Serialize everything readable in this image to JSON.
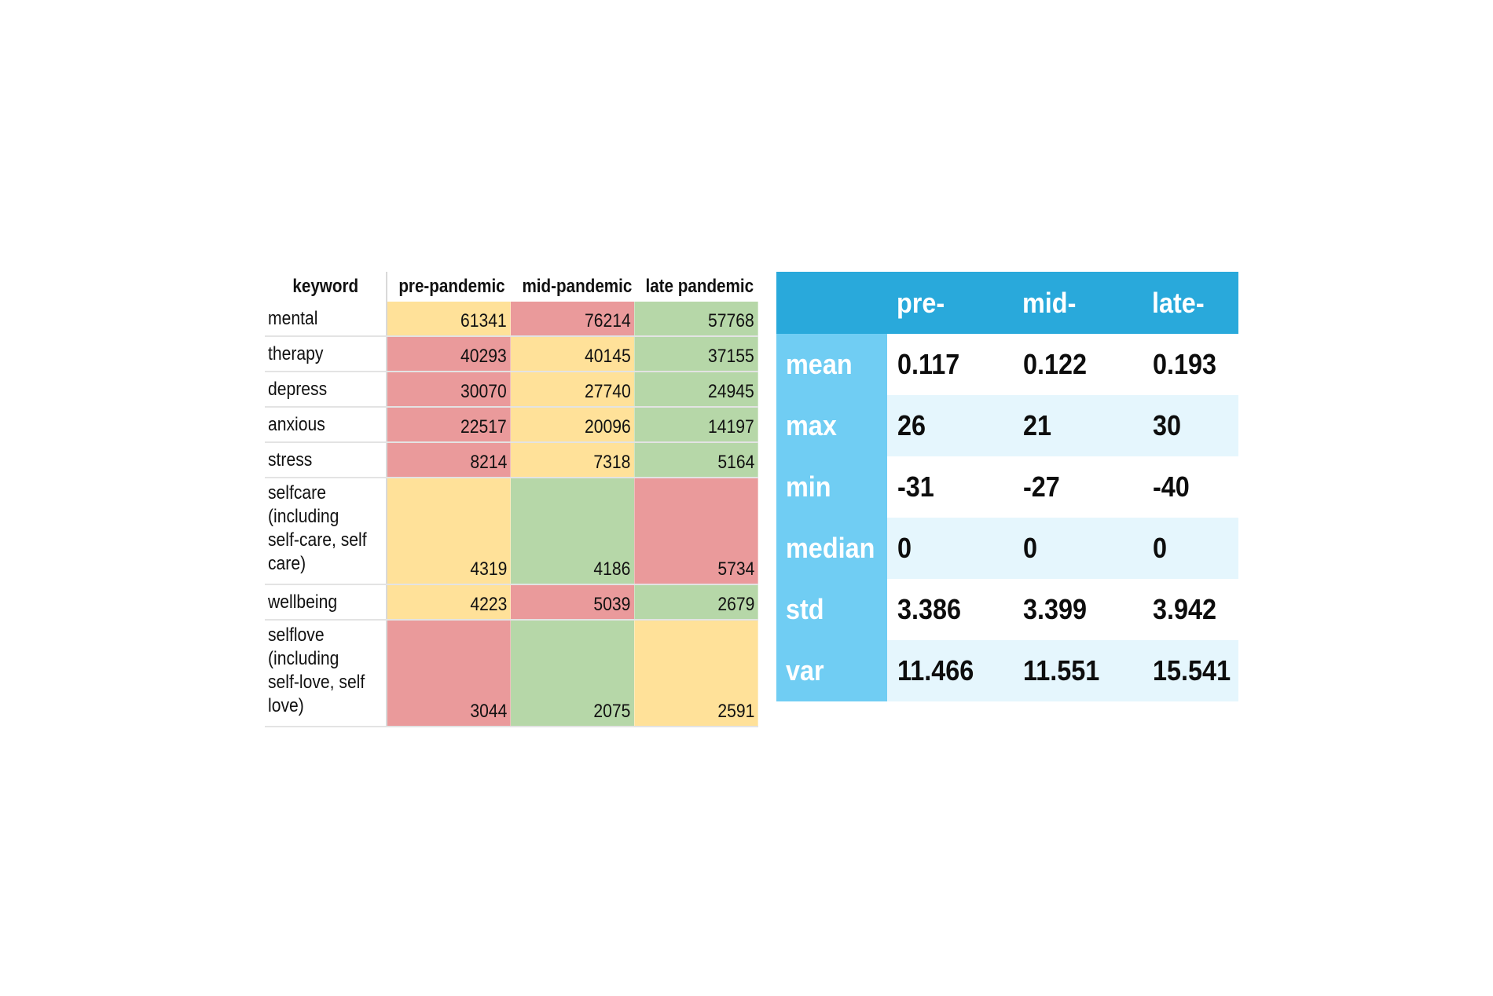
{
  "colors": {
    "cell_high": "#ea9a9b",
    "cell_mid": "#ffe199",
    "cell_low": "#b6d7a8",
    "stats_header_bg": "#29a9db",
    "stats_label_bg": "#70cdf3",
    "stats_stripe_bg": "#e5f6fd"
  },
  "chart_data": [
    {
      "type": "table",
      "columns": [
        "keyword",
        "pre-pandemic",
        "mid-pandemic",
        "late pandemic"
      ],
      "rows": [
        {
          "keyword": "mental",
          "values": [
            61341,
            76214,
            57768
          ],
          "colors": [
            "mid",
            "high",
            "low"
          ]
        },
        {
          "keyword": "therapy",
          "values": [
            40293,
            40145,
            37155
          ],
          "colors": [
            "high",
            "mid",
            "low"
          ]
        },
        {
          "keyword": "depress",
          "values": [
            30070,
            27740,
            24945
          ],
          "colors": [
            "high",
            "mid",
            "low"
          ]
        },
        {
          "keyword": "anxious",
          "values": [
            22517,
            20096,
            14197
          ],
          "colors": [
            "high",
            "mid",
            "low"
          ]
        },
        {
          "keyword": "stress",
          "values": [
            8214,
            7318,
            5164
          ],
          "colors": [
            "high",
            "mid",
            "low"
          ]
        },
        {
          "keyword": "selfcare (including self-care, self care)",
          "values": [
            4319,
            4186,
            5734
          ],
          "colors": [
            "mid",
            "low",
            "high"
          ]
        },
        {
          "keyword": "wellbeing",
          "values": [
            4223,
            5039,
            2679
          ],
          "colors": [
            "mid",
            "high",
            "low"
          ]
        },
        {
          "keyword": "selflove (including self-love, self love)",
          "values": [
            3044,
            2075,
            2591
          ],
          "colors": [
            "high",
            "low",
            "mid"
          ]
        }
      ]
    },
    {
      "type": "table",
      "columns": [
        "",
        "pre-",
        "mid-",
        "late-"
      ],
      "rows": [
        {
          "label": "mean",
          "values": [
            "0.117",
            "0.122",
            "0.193"
          ]
        },
        {
          "label": "max",
          "values": [
            "26",
            "21",
            "30"
          ]
        },
        {
          "label": "min",
          "values": [
            "-31",
            "-27",
            "-40"
          ]
        },
        {
          "label": "median",
          "values": [
            "0",
            "0",
            "0"
          ]
        },
        {
          "label": "std",
          "values": [
            "3.386",
            "3.399",
            "3.942"
          ]
        },
        {
          "label": "var",
          "values": [
            "11.466",
            "11.551",
            "15.541"
          ]
        }
      ]
    }
  ]
}
